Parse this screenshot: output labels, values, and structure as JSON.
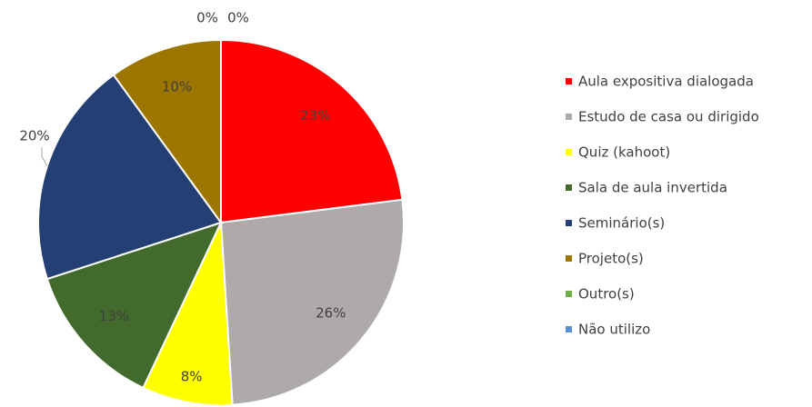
{
  "chart_data": {
    "type": "pie",
    "categories": [
      "Aula expositiva dialogada",
      "Estudo de casa ou dirigido",
      "Quiz (kahoot)",
      "Sala de aula invertida",
      "Seminário(s)",
      "Projeto(s)",
      "Outro(s)",
      "Não utilizo"
    ],
    "values": [
      23,
      26,
      8,
      13,
      20,
      10,
      0,
      0
    ],
    "value_labels": [
      "23%",
      "26%",
      "8%",
      "13%",
      "20%",
      "10%",
      "0%",
      "0%"
    ],
    "colors": [
      "#ff0000",
      "#aeaaaa",
      "#ffff00",
      "#416a2c",
      "#243f73",
      "#9c7600",
      "#70ad47",
      "#5b8fd6"
    ],
    "legend": "right"
  }
}
